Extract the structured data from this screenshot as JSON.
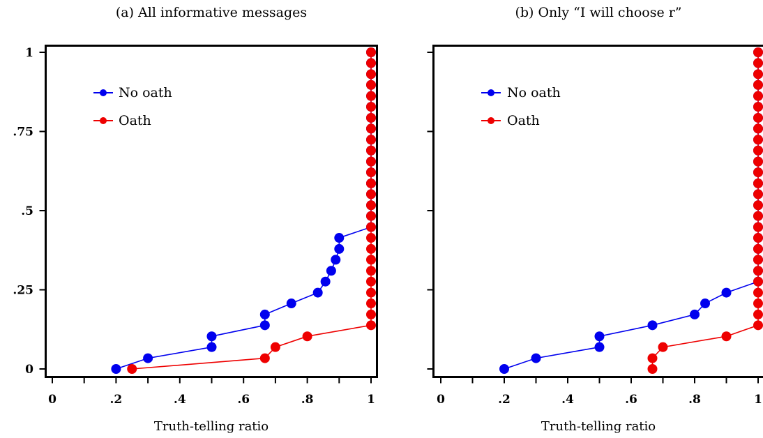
{
  "chart_data": [
    {
      "type": "line",
      "title": "(a) All informative messages",
      "xlabel": "Truth-telling ratio",
      "ylabel": "",
      "xlim": [
        0,
        1
      ],
      "ylim": [
        0,
        1
      ],
      "x_ticks": [
        0,
        0.2,
        0.4,
        0.6,
        0.8,
        1
      ],
      "x_tick_labels": [
        "0",
        ".2",
        ".4",
        ".6",
        ".8",
        "1"
      ],
      "y_ticks": [
        0,
        0.25,
        0.5,
        0.75,
        1
      ],
      "y_tick_labels": [
        "0",
        ".25",
        ".5",
        ".75",
        "1"
      ],
      "grid": false,
      "legend_position": "top-left",
      "series": [
        {
          "name": "No oath",
          "color": "#0000ee",
          "points": [
            [
              0.2,
              0.0
            ],
            [
              0.3,
              0.034
            ],
            [
              0.5,
              0.069
            ],
            [
              0.5,
              0.103
            ],
            [
              0.667,
              0.138
            ],
            [
              0.667,
              0.172
            ],
            [
              0.75,
              0.207
            ],
            [
              0.833,
              0.241
            ],
            [
              0.857,
              0.276
            ],
            [
              0.875,
              0.31
            ],
            [
              0.889,
              0.345
            ],
            [
              0.9,
              0.379
            ],
            [
              0.9,
              0.414
            ],
            [
              1.0,
              0.448
            ],
            [
              1.0,
              0.483
            ],
            [
              1.0,
              0.517
            ],
            [
              1.0,
              0.552
            ],
            [
              1.0,
              0.586
            ],
            [
              1.0,
              0.621
            ],
            [
              1.0,
              0.655
            ],
            [
              1.0,
              0.69
            ],
            [
              1.0,
              0.724
            ],
            [
              1.0,
              0.759
            ],
            [
              1.0,
              0.793
            ],
            [
              1.0,
              0.828
            ],
            [
              1.0,
              0.862
            ],
            [
              1.0,
              0.897
            ],
            [
              1.0,
              0.931
            ],
            [
              1.0,
              0.966
            ],
            [
              1.0,
              1.0
            ]
          ]
        },
        {
          "name": "Oath",
          "color": "#ee0000",
          "points": [
            [
              0.25,
              0.0
            ],
            [
              0.667,
              0.034
            ],
            [
              0.7,
              0.069
            ],
            [
              0.8,
              0.103
            ],
            [
              1.0,
              0.138
            ],
            [
              1.0,
              0.172
            ],
            [
              1.0,
              0.207
            ],
            [
              1.0,
              0.241
            ],
            [
              1.0,
              0.276
            ],
            [
              1.0,
              0.31
            ],
            [
              1.0,
              0.345
            ],
            [
              1.0,
              0.379
            ],
            [
              1.0,
              0.414
            ],
            [
              1.0,
              0.448
            ],
            [
              1.0,
              0.483
            ],
            [
              1.0,
              0.517
            ],
            [
              1.0,
              0.552
            ],
            [
              1.0,
              0.586
            ],
            [
              1.0,
              0.621
            ],
            [
              1.0,
              0.655
            ],
            [
              1.0,
              0.69
            ],
            [
              1.0,
              0.724
            ],
            [
              1.0,
              0.759
            ],
            [
              1.0,
              0.793
            ],
            [
              1.0,
              0.828
            ],
            [
              1.0,
              0.862
            ],
            [
              1.0,
              0.897
            ],
            [
              1.0,
              0.931
            ],
            [
              1.0,
              0.966
            ],
            [
              1.0,
              1.0
            ]
          ]
        }
      ]
    },
    {
      "type": "line",
      "title": "(b) Only “I will choose r”",
      "xlabel": "Truth-telling ratio",
      "ylabel": "",
      "xlim": [
        0,
        1
      ],
      "ylim": [
        0,
        1
      ],
      "x_ticks": [
        0,
        0.2,
        0.4,
        0.6,
        0.8,
        1
      ],
      "x_tick_labels": [
        "0",
        ".2",
        ".4",
        ".6",
        ".8",
        "1"
      ],
      "y_ticks": [
        0,
        0.25,
        0.5,
        0.75,
        1
      ],
      "y_tick_labels": [
        "",
        "",
        "",
        "",
        ""
      ],
      "grid": false,
      "legend_position": "top-left",
      "series": [
        {
          "name": "No oath",
          "color": "#0000ee",
          "points": [
            [
              0.2,
              0.0
            ],
            [
              0.3,
              0.034
            ],
            [
              0.5,
              0.069
            ],
            [
              0.5,
              0.103
            ],
            [
              0.667,
              0.138
            ],
            [
              0.8,
              0.172
            ],
            [
              0.833,
              0.207
            ],
            [
              0.9,
              0.241
            ],
            [
              1.0,
              0.276
            ],
            [
              1.0,
              0.31
            ],
            [
              1.0,
              0.345
            ],
            [
              1.0,
              0.379
            ],
            [
              1.0,
              0.414
            ],
            [
              1.0,
              0.448
            ],
            [
              1.0,
              0.483
            ],
            [
              1.0,
              0.517
            ],
            [
              1.0,
              0.552
            ],
            [
              1.0,
              0.586
            ],
            [
              1.0,
              0.621
            ],
            [
              1.0,
              0.655
            ],
            [
              1.0,
              0.69
            ],
            [
              1.0,
              0.724
            ],
            [
              1.0,
              0.759
            ],
            [
              1.0,
              0.793
            ],
            [
              1.0,
              0.828
            ],
            [
              1.0,
              0.862
            ],
            [
              1.0,
              0.897
            ],
            [
              1.0,
              0.931
            ],
            [
              1.0,
              0.966
            ],
            [
              1.0,
              1.0
            ]
          ]
        },
        {
          "name": "Oath",
          "color": "#ee0000",
          "points": [
            [
              0.667,
              0.0
            ],
            [
              0.667,
              0.034
            ],
            [
              0.7,
              0.069
            ],
            [
              0.9,
              0.103
            ],
            [
              1.0,
              0.138
            ],
            [
              1.0,
              0.172
            ],
            [
              1.0,
              0.207
            ],
            [
              1.0,
              0.241
            ],
            [
              1.0,
              0.276
            ],
            [
              1.0,
              0.31
            ],
            [
              1.0,
              0.345
            ],
            [
              1.0,
              0.379
            ],
            [
              1.0,
              0.414
            ],
            [
              1.0,
              0.448
            ],
            [
              1.0,
              0.483
            ],
            [
              1.0,
              0.517
            ],
            [
              1.0,
              0.552
            ],
            [
              1.0,
              0.586
            ],
            [
              1.0,
              0.621
            ],
            [
              1.0,
              0.655
            ],
            [
              1.0,
              0.69
            ],
            [
              1.0,
              0.724
            ],
            [
              1.0,
              0.759
            ],
            [
              1.0,
              0.793
            ],
            [
              1.0,
              0.828
            ],
            [
              1.0,
              0.862
            ],
            [
              1.0,
              0.897
            ],
            [
              1.0,
              0.931
            ],
            [
              1.0,
              0.966
            ],
            [
              1.0,
              1.0
            ]
          ]
        }
      ]
    }
  ]
}
